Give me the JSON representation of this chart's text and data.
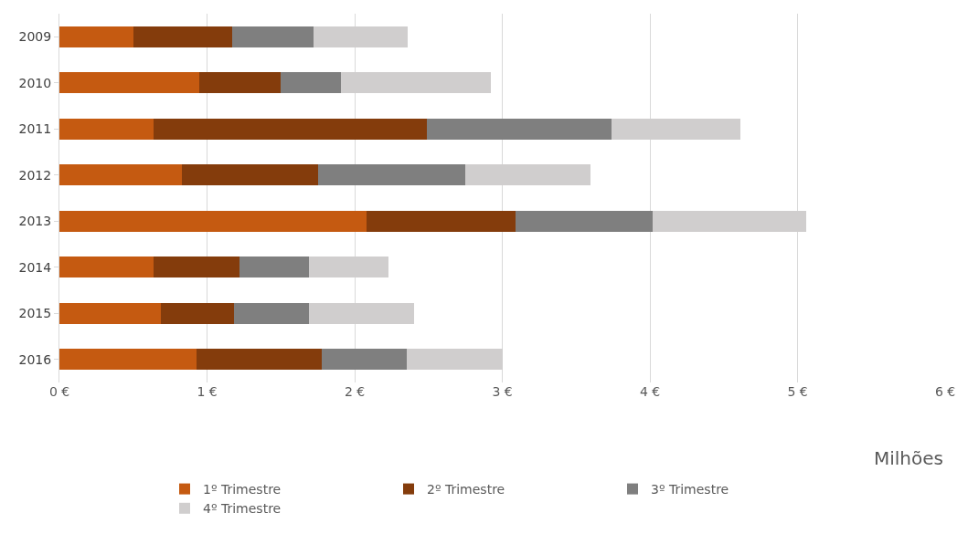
{
  "chart_data": {
    "type": "bar",
    "orientation": "horizontal",
    "stacked": true,
    "categories": [
      "2009",
      "2010",
      "2011",
      "2012",
      "2013",
      "2014",
      "2015",
      "2016"
    ],
    "series": [
      {
        "name": "1º Trimestre",
        "color": "#c55a11",
        "values": [
          0.5,
          0.95,
          0.64,
          0.83,
          2.08,
          0.64,
          0.69,
          0.93
        ]
      },
      {
        "name": "2º Trimestre",
        "color": "#843c0c",
        "values": [
          0.67,
          0.55,
          1.85,
          0.92,
          1.01,
          0.58,
          0.49,
          0.85
        ]
      },
      {
        "name": "3º Trimestre",
        "color": "#7f7f7f",
        "values": [
          0.55,
          0.41,
          1.25,
          1.0,
          0.93,
          0.47,
          0.51,
          0.57
        ]
      },
      {
        "name": "4º Trimestre",
        "color": "#d0cece",
        "values": [
          0.64,
          1.01,
          0.87,
          0.85,
          1.04,
          0.54,
          0.71,
          0.65
        ]
      }
    ],
    "xlim": [
      0,
      6
    ],
    "xticks": [
      {
        "value": 0,
        "label": "0 €"
      },
      {
        "value": 1,
        "label": "1 €"
      },
      {
        "value": 2,
        "label": "2 €"
      },
      {
        "value": 3,
        "label": "3 €"
      },
      {
        "value": 4,
        "label": "4 €"
      },
      {
        "value": 5,
        "label": "5 €"
      },
      {
        "value": 6,
        "label": "6 €"
      }
    ],
    "xlabel": "Milhões",
    "grid": "x",
    "legend": "bottom"
  }
}
